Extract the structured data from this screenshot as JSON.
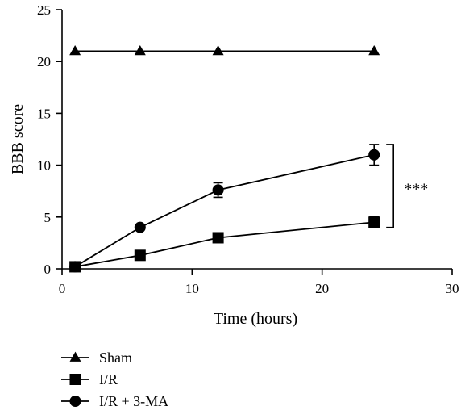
{
  "chart_data": {
    "type": "line",
    "xlabel": "Time (hours)",
    "ylabel": "BBB score",
    "xlim": [
      0,
      30
    ],
    "ylim": [
      0,
      25
    ],
    "xticks": [
      0,
      10,
      20,
      30
    ],
    "yticks": [
      0,
      5,
      10,
      15,
      20,
      25
    ],
    "grid": false,
    "legend_position": "bottom-left",
    "series": [
      {
        "name": "Sham",
        "marker": "triangle",
        "color": "#000000",
        "x": [
          1,
          6,
          12,
          24
        ],
        "y": [
          21,
          21,
          21,
          21
        ],
        "err": [
          0,
          0,
          0,
          0
        ]
      },
      {
        "name": "I/R",
        "marker": "square",
        "color": "#000000",
        "x": [
          1,
          6,
          12,
          24
        ],
        "y": [
          0.2,
          1.3,
          3.0,
          4.5
        ],
        "err": [
          0,
          0,
          0.3,
          0.5
        ]
      },
      {
        "name": "I/R + 3-MA",
        "marker": "circle",
        "color": "#000000",
        "x": [
          1,
          6,
          12,
          24
        ],
        "y": [
          0.2,
          4.0,
          7.6,
          11.0
        ],
        "err": [
          0,
          0,
          0.7,
          1.0
        ]
      }
    ],
    "annotations": [
      {
        "text": "***",
        "between": [
          "I/R",
          "I/R + 3-MA"
        ],
        "at_x": 24
      }
    ]
  }
}
